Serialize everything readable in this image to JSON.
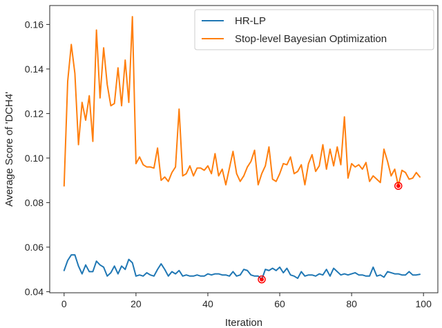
{
  "chart_data": {
    "type": "line",
    "title": "",
    "xlabel": "Iteration",
    "ylabel": "Average Score of 'DCH4'",
    "xlim": [
      -4,
      104
    ],
    "ylim": [
      0.0395,
      0.1685
    ],
    "x_ticks": [
      0,
      20,
      40,
      60,
      80,
      100
    ],
    "y_ticks": [
      0.04,
      0.06,
      0.08,
      0.1,
      0.12,
      0.14,
      0.16
    ],
    "x_tick_labels": [
      "0",
      "20",
      "40",
      "60",
      "80",
      "100"
    ],
    "y_tick_labels": [
      "0.04",
      "0.06",
      "0.08",
      "0.10",
      "0.12",
      "0.14",
      "0.16"
    ],
    "grid": false,
    "legend_position": "top-right",
    "series": [
      {
        "name": "HR-LP",
        "color": "#1f77b4",
        "values": [
          0.0495,
          0.054,
          0.0565,
          0.0565,
          0.0515,
          0.048,
          0.052,
          0.049,
          0.049,
          0.0537,
          0.052,
          0.051,
          0.047,
          0.0485,
          0.0515,
          0.048,
          0.0515,
          0.05,
          0.0545,
          0.053,
          0.047,
          0.0475,
          0.047,
          0.0485,
          0.0475,
          0.047,
          0.05,
          0.0525,
          0.05,
          0.047,
          0.049,
          0.048,
          0.0495,
          0.047,
          0.0475,
          0.047,
          0.047,
          0.0475,
          0.047,
          0.047,
          0.048,
          0.0475,
          0.048,
          0.048,
          0.0475,
          0.0475,
          0.047,
          0.049,
          0.047,
          0.0475,
          0.05,
          0.0495,
          0.0475,
          0.047,
          0.047,
          0.0455,
          0.05,
          0.0495,
          0.0505,
          0.0495,
          0.051,
          0.0485,
          0.0505,
          0.0475,
          0.047,
          0.046,
          0.049,
          0.047,
          0.0475,
          0.0475,
          0.047,
          0.048,
          0.0475,
          0.05,
          0.047,
          0.0505,
          0.049,
          0.0475,
          0.048,
          0.0475,
          0.048,
          0.0485,
          0.0475,
          0.0475,
          0.047,
          0.047,
          0.051,
          0.047,
          0.0475,
          0.0465,
          0.049,
          0.0485,
          0.048,
          0.048,
          0.0475,
          0.0475,
          0.049,
          0.0475,
          0.0475,
          0.0478
        ]
      },
      {
        "name": "Stop-level Bayesian Optimization",
        "color": "#ff7f0e",
        "values": [
          0.0875,
          0.1345,
          0.151,
          0.138,
          0.106,
          0.125,
          0.117,
          0.128,
          0.1075,
          0.1575,
          0.127,
          0.1495,
          0.133,
          0.1235,
          0.1245,
          0.1405,
          0.1235,
          0.144,
          0.125,
          0.1635,
          0.0975,
          0.1005,
          0.097,
          0.096,
          0.096,
          0.0955,
          0.1045,
          0.09,
          0.0915,
          0.0895,
          0.0935,
          0.096,
          0.122,
          0.092,
          0.093,
          0.0965,
          0.092,
          0.0955,
          0.0955,
          0.0945,
          0.0965,
          0.093,
          0.102,
          0.092,
          0.095,
          0.088,
          0.0955,
          0.103,
          0.093,
          0.0895,
          0.092,
          0.096,
          0.0985,
          0.1035,
          0.088,
          0.093,
          0.0965,
          0.105,
          0.0905,
          0.0895,
          0.093,
          0.0975,
          0.097,
          0.1005,
          0.093,
          0.094,
          0.097,
          0.088,
          0.0975,
          0.1015,
          0.094,
          0.0965,
          0.106,
          0.095,
          0.104,
          0.0965,
          0.105,
          0.097,
          0.1185,
          0.091,
          0.0975,
          0.096,
          0.097,
          0.095,
          0.098,
          0.0895,
          0.092,
          0.0905,
          0.089,
          0.104,
          0.0985,
          0.092,
          0.095,
          0.0875,
          0.0945,
          0.0935,
          0.0905,
          0.091,
          0.0935,
          0.0915
        ]
      }
    ],
    "highlight_points": [
      {
        "series": "HR-LP",
        "x": 55,
        "y": 0.0455,
        "color": "#ff0000"
      },
      {
        "series": "Stop-level Bayesian Optimization",
        "x": 93,
        "y": 0.0875,
        "color": "#ff0000"
      }
    ]
  }
}
